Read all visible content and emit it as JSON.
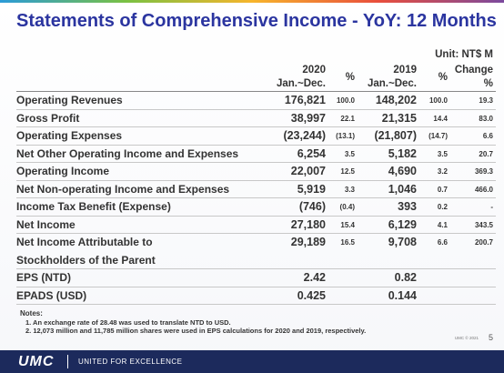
{
  "header": {
    "title": "Statements of Comprehensive Income - YoY: 12 Months",
    "unit": "Unit: NT$ M"
  },
  "table": {
    "columns": {
      "y2020": [
        "2020",
        "Jan.~Dec."
      ],
      "p2020": "%",
      "y2019": [
        "2019",
        "Jan.~Dec."
      ],
      "p2019": "%",
      "change": [
        "Change",
        "%"
      ]
    },
    "rows": [
      {
        "label": [
          "Operating Revenues"
        ],
        "y2020": "176,821",
        "p2020": "100.0",
        "y2019": "148,202",
        "p2019": "100.0",
        "change": "19.3"
      },
      {
        "label": [
          "Gross Profit"
        ],
        "y2020": "38,997",
        "p2020": "22.1",
        "y2019": "21,315",
        "p2019": "14.4",
        "change": "83.0"
      },
      {
        "label": [
          "Operating Expenses"
        ],
        "y2020": "(23,244)",
        "p2020": "(13.1)",
        "y2019": "(21,807)",
        "p2019": "(14.7)",
        "change": "6.6"
      },
      {
        "label": [
          "Net Other Operating Income and Expenses"
        ],
        "y2020": "6,254",
        "p2020": "3.5",
        "y2019": "5,182",
        "p2019": "3.5",
        "change": "20.7"
      },
      {
        "label": [
          "Operating Income"
        ],
        "y2020": "22,007",
        "p2020": "12.5",
        "y2019": "4,690",
        "p2019": "3.2",
        "change": "369.3"
      },
      {
        "label": [
          "Net Non-operating Income and Expenses"
        ],
        "y2020": "5,919",
        "p2020": "3.3",
        "y2019": "1,046",
        "p2019": "0.7",
        "change": "466.0"
      },
      {
        "label": [
          "Income Tax Benefit (Expense)"
        ],
        "y2020": "(746)",
        "p2020": "(0.4)",
        "y2019": "393",
        "p2019": "0.2",
        "change": "-"
      },
      {
        "label": [
          "Net Income"
        ],
        "y2020": "27,180",
        "p2020": "15.4",
        "y2019": "6,129",
        "p2019": "4.1",
        "change": "343.5"
      },
      {
        "label": [
          "Net Income Attributable to",
          "Stockholders of the Parent"
        ],
        "y2020": "29,189",
        "p2020": "16.5",
        "y2019": "9,708",
        "p2019": "6.6",
        "change": "200.7"
      },
      {
        "label": [
          "EPS (NTD)"
        ],
        "y2020": "2.42",
        "y2019": "0.82"
      },
      {
        "label": [
          "EPADS (USD)"
        ],
        "y2020": "0.425",
        "y2019": "0.144"
      }
    ]
  },
  "notes": {
    "title": "Notes:",
    "items": [
      "1. An exchange rate of 28.48 was used to translate NTD to USD.",
      "2. 12,073 million and 11,785 million shares were used in EPS calculations for 2020 and 2019, respectively."
    ]
  },
  "footer": {
    "logo": "UMC",
    "tagline": "UNITED FOR EXCELLENCE",
    "copyright": "UMC © 2021",
    "page": "5"
  }
}
